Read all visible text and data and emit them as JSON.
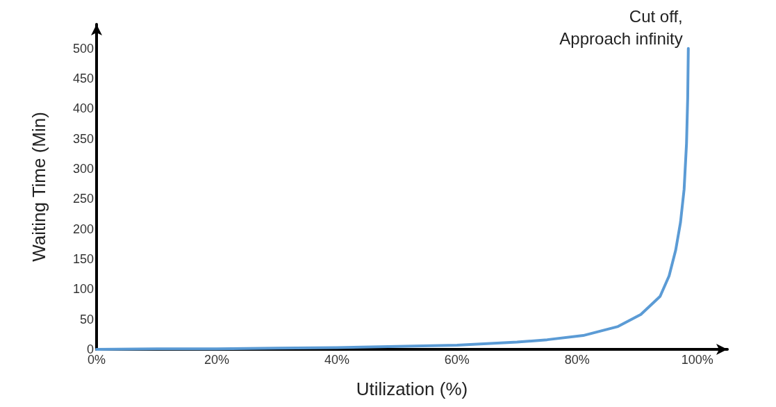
{
  "chart_data": {
    "type": "line",
    "xlabel": "Utilization (%)",
    "ylabel": "Waiting Time (Min)",
    "x": [
      0,
      10,
      20,
      30,
      40,
      50,
      60,
      70,
      75,
      81,
      86.8,
      90.6,
      93.8,
      95.3,
      96.4,
      97.2,
      97.8,
      98.2,
      98.4,
      98.5
    ],
    "series": [
      {
        "color": "#5b9bd5",
        "values": [
          0,
          1,
          1,
          2,
          3,
          5,
          7,
          12,
          16,
          23,
          38,
          58,
          88,
          122,
          165,
          211,
          266,
          342,
          419,
          500
        ]
      }
    ],
    "xlim": [
      0,
      105
    ],
    "xticks": [
      {
        "value": 0,
        "label": "0%"
      },
      {
        "value": 20,
        "label": "20%"
      },
      {
        "value": 40,
        "label": "40%"
      },
      {
        "value": 60,
        "label": "60%"
      },
      {
        "value": 80,
        "label": "80%"
      },
      {
        "value": 100,
        "label": "100%"
      }
    ],
    "ylim": [
      0,
      540
    ],
    "yticks": [
      0,
      50,
      100,
      150,
      200,
      250,
      300,
      350,
      400,
      450,
      500
    ],
    "annotations": [
      {
        "text": "Cut off,\nApproach infinity",
        "x": 98.5,
        "y": 500
      }
    ],
    "grid": false,
    "marker": "none",
    "line_style": "solid"
  }
}
